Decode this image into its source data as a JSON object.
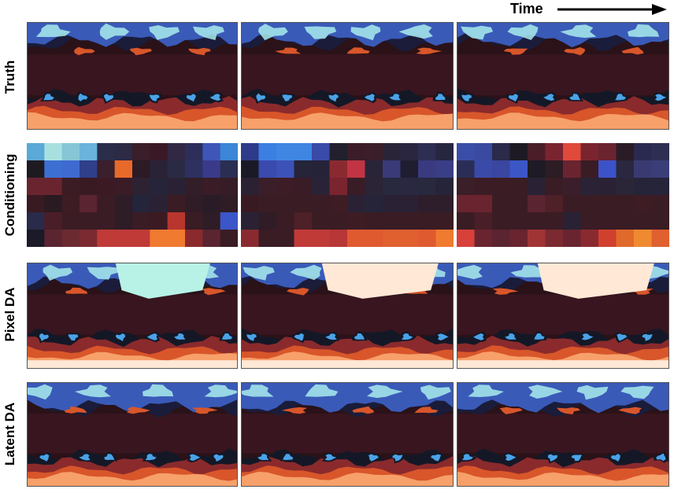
{
  "header": {
    "time_label": "Time"
  },
  "rows": [
    {
      "label": "Truth"
    },
    {
      "label": "Conditioning"
    },
    {
      "label": "Pixel DA"
    },
    {
      "label": "Latent DA"
    }
  ],
  "colormap": {
    "name": "diverging blue-black-orange",
    "stops": [
      "#b8f2e6",
      "#4aa3e8",
      "#2e3f9e",
      "#141826",
      "#3a1018",
      "#8a2a2c",
      "#d8562a",
      "#f7a06a",
      "#ffe8d6"
    ]
  },
  "conditioning_grids": [
    [
      [
        "#5aa9d6",
        "#a8e0e0",
        "#86c6d6",
        "#6ab3dc",
        "#2a2d4a",
        "#2c2a44",
        "#3a1e2a",
        "#3a1826",
        "#322844",
        "#2e2e5a",
        "#3e56b8",
        "#3b86d6"
      ],
      [
        "#1e1a22",
        "#3d6fd2",
        "#3f6ad0",
        "#2f3f8a",
        "#3a1f2c",
        "#e86a2a",
        "#2c1a24",
        "#2a2236",
        "#2a2a44",
        "#2e3060",
        "#3a3a8a",
        "#2a2e52"
      ],
      [
        "#6a2430",
        "#6a2430",
        "#3c1c24",
        "#3a1a22",
        "#3c1a24",
        "#3a1c26",
        "#2c2232",
        "#262438",
        "#2a2234",
        "#321e28",
        "#3a1c26",
        "#361c26"
      ],
      [
        "#3a1a22",
        "#2a1a22",
        "#3e1c24",
        "#5a2430",
        "#3a1c24",
        "#2e1c26",
        "#24243a",
        "#2a2234",
        "#3a1c24",
        "#301c26",
        "#2a1c26",
        "#301c24"
      ],
      [
        "#2a2a4a",
        "#4a1e28",
        "#3c1c24",
        "#3a1c24",
        "#3a1c24",
        "#2e1c26",
        "#3a1c24",
        "#3c1a24",
        "#b8362e",
        "#3a1c24",
        "#2e1c26",
        "#3b56c8"
      ],
      [
        "#1a1a28",
        "#5a2430",
        "#6a2a30",
        "#7a2a30",
        "#c03a38",
        "#c03a38",
        "#c03a38",
        "#f07a30",
        "#f07a30",
        "#8a2a2c",
        "#5a2430",
        "#3a1c24"
      ]
    ],
    [
      [
        "#2e3a8a",
        "#3b7fe0",
        "#3f86e2",
        "#3f86e2",
        "#3a4aa8",
        "#22202c",
        "#3c1c28",
        "#3a1e2a",
        "#2a2438",
        "#2a2640",
        "#2e2e52",
        "#262640"
      ],
      [
        "#1a1a26",
        "#3a4aae",
        "#3c52b8",
        "#262438",
        "#262238",
        "#8a2a30",
        "#c03444",
        "#2a2438",
        "#3a3a78",
        "#1e1e30",
        "#3a3a80",
        "#3a3e86"
      ],
      [
        "#2a2232",
        "#3a1e2a",
        "#3e1c26",
        "#3a1c26",
        "#2a2236",
        "#7a2430",
        "#3a1c26",
        "#2a2436",
        "#28283e",
        "#2a2840",
        "#28283e",
        "#262438"
      ],
      [
        "#3a1a22",
        "#3a1c24",
        "#3a1c24",
        "#3a1c24",
        "#3a1c24",
        "#3e1c24",
        "#2a2234",
        "#262438",
        "#2a2234",
        "#2a2234",
        "#2e1e2c",
        "#2e1e2c"
      ],
      [
        "#2a2234",
        "#301c26",
        "#3a1c24",
        "#4e2028",
        "#3a1c24",
        "#3a1c24",
        "#3e1c24",
        "#3a1c24",
        "#3a1c24",
        "#3a1c24",
        "#3a1c24",
        "#3a1c24"
      ],
      [
        "#8a2a30",
        "#3a1c24",
        "#3a1c24",
        "#c03a38",
        "#c03a38",
        "#b83636",
        "#e05a30",
        "#e05a30",
        "#e06030",
        "#e06030",
        "#e05a30",
        "#f07a30"
      ]
    ],
    [
      [
        "#3a4ea8",
        "#3a4aa0",
        "#2a2a4a",
        "#1e1a24",
        "#4a1e28",
        "#7a2430",
        "#e04a3a",
        "#7a2430",
        "#6a2430",
        "#2a1c26",
        "#2a2a50",
        "#2e2e52"
      ],
      [
        "#2a2e56",
        "#3a4aa8",
        "#3a46a0",
        "#3c56c8",
        "#1e1a26",
        "#2c1c24",
        "#6a2430",
        "#3a1c24",
        "#3c52c8",
        "#2a2840",
        "#3a3a72",
        "#3a3e78"
      ],
      [
        "#3a1e28",
        "#3c1c24",
        "#3c1c24",
        "#3a1c24",
        "#2a2234",
        "#3a1c24",
        "#3a1e2a",
        "#2a2236",
        "#2a2234",
        "#2a2638",
        "#262438",
        "#262438"
      ],
      [
        "#6a2430",
        "#6a2430",
        "#3a1c24",
        "#3a1c24",
        "#5a2430",
        "#4e2028",
        "#3a1c24",
        "#3a1c24",
        "#3a1c24",
        "#3a1c24",
        "#3e1c24",
        "#3a1c24"
      ],
      [
        "#3a1c24",
        "#4a1e28",
        "#3a1c24",
        "#3a1c24",
        "#3a1c24",
        "#3a1c24",
        "#2a2234",
        "#3a1c24",
        "#3a1c24",
        "#3a1c24",
        "#3a1c24",
        "#3a1c24"
      ],
      [
        "#d8403a",
        "#6a2430",
        "#5a2430",
        "#6a2430",
        "#a03434",
        "#7a2a30",
        "#6a2430",
        "#8a2a30",
        "#d0402e",
        "#e06a2a",
        "#f08a30",
        "#e06030"
      ]
    ]
  ]
}
